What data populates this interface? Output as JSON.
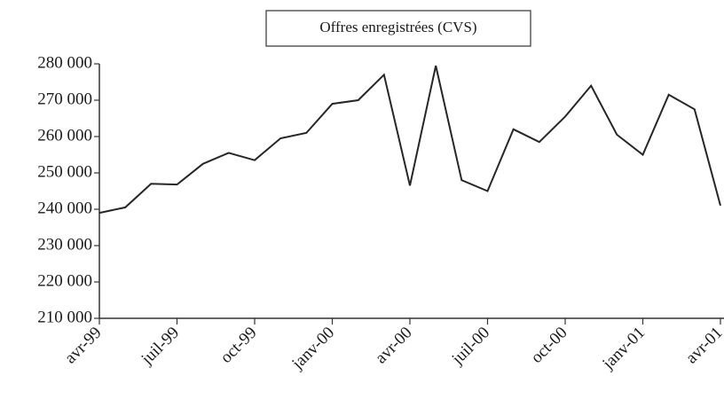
{
  "chart_data": {
    "type": "line",
    "title": "Offres enregistrées (CVS)",
    "categories": [
      "avr-99",
      null,
      null,
      "juil-99",
      null,
      null,
      "oct-99",
      null,
      null,
      "janv-00",
      null,
      null,
      "avr-00",
      null,
      null,
      "juil-00",
      null,
      null,
      "oct-00",
      null,
      null,
      "janv-01",
      null,
      null,
      "avr-01"
    ],
    "series": [
      {
        "name": "Offres enregistrées (CVS)",
        "color": "#262626",
        "values": [
          239000,
          240500,
          247000,
          246800,
          252500,
          255500,
          253500,
          259500,
          261000,
          269000,
          270000,
          277000,
          246500,
          279500,
          248000,
          245000,
          262000,
          258500,
          265500,
          274000,
          260500,
          255000,
          271500,
          267500,
          241000
        ]
      }
    ],
    "ylim": [
      210000,
      280000
    ],
    "yticks": [
      {
        "value": 210000,
        "label": "210 000"
      },
      {
        "value": 220000,
        "label": "220 000"
      },
      {
        "value": 230000,
        "label": "230 000"
      },
      {
        "value": 240000,
        "label": "240 000"
      },
      {
        "value": 250000,
        "label": "250 000"
      },
      {
        "value": 260000,
        "label": "260 000"
      },
      {
        "value": 270000,
        "label": "270 000"
      },
      {
        "value": 280000,
        "label": "280 000"
      }
    ],
    "grid": false
  }
}
